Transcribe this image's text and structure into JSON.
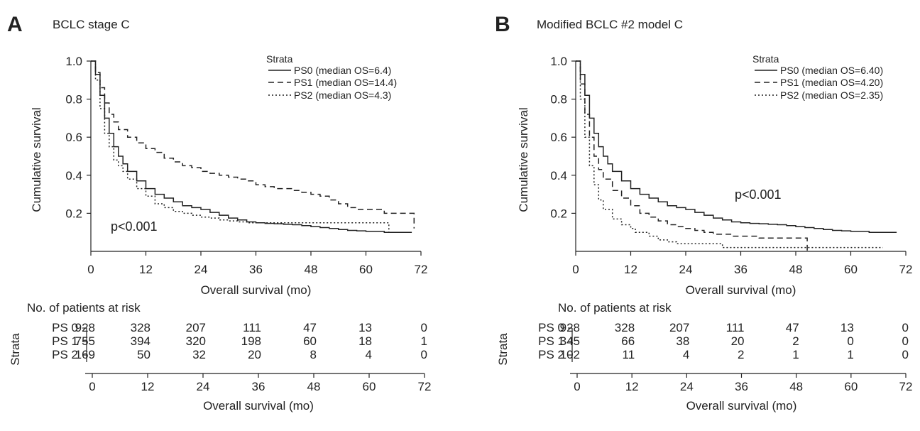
{
  "chart_data": [
    {
      "panel_letter": "A",
      "title": "BCLC stage C",
      "type": "line",
      "subtype": "kaplan-meier step curves",
      "xlabel": "Overall survival (mo)",
      "ylabel": "Cumulative survival",
      "xlim": [
        0,
        72
      ],
      "ylim": [
        0,
        1.0
      ],
      "xticks": [
        0,
        12,
        24,
        36,
        48,
        60,
        72
      ],
      "yticks": [
        0.2,
        0.4,
        0.6,
        0.8,
        1.0
      ],
      "ytick_labels": [
        "0.2",
        "0.4",
        "0.6",
        "0.8",
        "1.0"
      ],
      "grid": false,
      "legend_title": "Strata",
      "legend_position": "top-right",
      "annotation": "p<0.001",
      "series": [
        {
          "name": "PS0 (median OS=6.4)",
          "line_style": "solid",
          "x": [
            0,
            1,
            2,
            3,
            4,
            5,
            6,
            7,
            8,
            10,
            12,
            14,
            16,
            18,
            20,
            22,
            24,
            26,
            28,
            30,
            32,
            34,
            36,
            38,
            40,
            42,
            44,
            46,
            48,
            50,
            52,
            54,
            56,
            58,
            60,
            62,
            64,
            66,
            68,
            70
          ],
          "y": [
            1.0,
            0.93,
            0.82,
            0.7,
            0.62,
            0.55,
            0.5,
            0.46,
            0.42,
            0.37,
            0.33,
            0.3,
            0.28,
            0.26,
            0.24,
            0.23,
            0.22,
            0.205,
            0.19,
            0.175,
            0.165,
            0.155,
            0.15,
            0.147,
            0.145,
            0.142,
            0.14,
            0.135,
            0.13,
            0.125,
            0.12,
            0.115,
            0.11,
            0.108,
            0.105,
            0.105,
            0.1,
            0.1,
            0.1,
            0.1
          ]
        },
        {
          "name": "PS1 (median OS=14.4)",
          "line_style": "dashed",
          "x": [
            0,
            1,
            2,
            3,
            4,
            5,
            6,
            8,
            10,
            12,
            14,
            16,
            18,
            20,
            22,
            24,
            26,
            28,
            30,
            32,
            34,
            36,
            38,
            40,
            42,
            44,
            46,
            48,
            50,
            52,
            54,
            56,
            58,
            60,
            62,
            64,
            66,
            68,
            70,
            70.5
          ],
          "y": [
            1.0,
            0.94,
            0.86,
            0.78,
            0.72,
            0.68,
            0.64,
            0.6,
            0.57,
            0.54,
            0.52,
            0.49,
            0.47,
            0.45,
            0.44,
            0.42,
            0.41,
            0.4,
            0.39,
            0.38,
            0.37,
            0.35,
            0.34,
            0.33,
            0.33,
            0.32,
            0.31,
            0.3,
            0.29,
            0.27,
            0.25,
            0.23,
            0.22,
            0.22,
            0.22,
            0.2,
            0.2,
            0.2,
            0.2,
            0.12
          ]
        },
        {
          "name": "PS2 (median OS=4.3)",
          "line_style": "dotted",
          "x": [
            0,
            1,
            2,
            3,
            4,
            5,
            6,
            7,
            8,
            10,
            12,
            14,
            16,
            18,
            20,
            22,
            24,
            26,
            28,
            30,
            32,
            34,
            36,
            38,
            40,
            42,
            44,
            46,
            48,
            50,
            52,
            54,
            56,
            58,
            60,
            62,
            64,
            65
          ],
          "y": [
            1.0,
            0.9,
            0.75,
            0.62,
            0.55,
            0.48,
            0.45,
            0.42,
            0.38,
            0.33,
            0.29,
            0.25,
            0.23,
            0.21,
            0.2,
            0.19,
            0.18,
            0.175,
            0.165,
            0.16,
            0.155,
            0.15,
            0.15,
            0.15,
            0.15,
            0.15,
            0.15,
            0.15,
            0.15,
            0.15,
            0.15,
            0.15,
            0.15,
            0.15,
            0.15,
            0.15,
            0.15,
            0.1
          ]
        }
      ],
      "risk_table": {
        "title": "No. of patients at risk",
        "row_axis_label": "Strata",
        "times": [
          0,
          12,
          24,
          36,
          48,
          60,
          72
        ],
        "rows": [
          {
            "label": "PS 0",
            "counts": [
              "928",
              "328",
              "207",
              "111",
              "47",
              "13",
              "0"
            ]
          },
          {
            "label": "PS 1",
            "counts": [
              "755",
              "394",
              "320",
              "198",
              "60",
              "18",
              "1"
            ]
          },
          {
            "label": "PS 2",
            "counts": [
              "169",
              "50",
              "32",
              "20",
              "8",
              "4",
              "0"
            ]
          }
        ],
        "xlabel": "Overall survival (mo)",
        "xticks": [
          0,
          12,
          24,
          36,
          48,
          60,
          72
        ]
      }
    },
    {
      "panel_letter": "B",
      "title": "Modified BCLC #2 model C",
      "type": "line",
      "subtype": "kaplan-meier step curves",
      "xlabel": "Overall survival (mo)",
      "ylabel": "Cumulative survival",
      "xlim": [
        0,
        72
      ],
      "ylim": [
        0,
        1.0
      ],
      "xticks": [
        0,
        12,
        24,
        36,
        48,
        60,
        72
      ],
      "yticks": [
        0.2,
        0.4,
        0.6,
        0.8,
        1.0
      ],
      "ytick_labels": [
        "0.2",
        "0.4",
        "0.6",
        "0.8",
        "1.0"
      ],
      "grid": false,
      "legend_title": "Strata",
      "legend_position": "top-right",
      "annotation": "p<0.001",
      "series": [
        {
          "name": "PS0 (median OS=6.40)",
          "line_style": "solid",
          "x": [
            0,
            1,
            2,
            3,
            4,
            5,
            6,
            7,
            8,
            10,
            12,
            14,
            16,
            18,
            20,
            22,
            24,
            26,
            28,
            30,
            32,
            34,
            36,
            38,
            40,
            42,
            44,
            46,
            48,
            50,
            52,
            54,
            56,
            58,
            60,
            62,
            64,
            66,
            68,
            70
          ],
          "y": [
            1.0,
            0.93,
            0.82,
            0.7,
            0.62,
            0.55,
            0.5,
            0.46,
            0.42,
            0.37,
            0.33,
            0.3,
            0.28,
            0.26,
            0.24,
            0.23,
            0.22,
            0.205,
            0.19,
            0.175,
            0.165,
            0.155,
            0.15,
            0.147,
            0.145,
            0.142,
            0.14,
            0.135,
            0.13,
            0.125,
            0.12,
            0.115,
            0.11,
            0.108,
            0.105,
            0.105,
            0.1,
            0.1,
            0.1,
            0.1
          ]
        },
        {
          "name": "PS1 (median OS=4.20)",
          "line_style": "dashed",
          "x": [
            0,
            1,
            2,
            3,
            4,
            5,
            6,
            8,
            10,
            12,
            14,
            16,
            18,
            20,
            22,
            24,
            26,
            28,
            30,
            32,
            34,
            36,
            38,
            40,
            44,
            48,
            50,
            50.5
          ],
          "y": [
            1.0,
            0.88,
            0.72,
            0.6,
            0.5,
            0.43,
            0.38,
            0.32,
            0.28,
            0.24,
            0.2,
            0.18,
            0.16,
            0.14,
            0.13,
            0.12,
            0.11,
            0.1,
            0.09,
            0.09,
            0.08,
            0.08,
            0.08,
            0.07,
            0.07,
            0.07,
            0.07,
            0.0
          ]
        },
        {
          "name": "PS2 (median OS=2.35)",
          "line_style": "dotted",
          "x": [
            0,
            1,
            2,
            3,
            4,
            5,
            6,
            8,
            10,
            12,
            13,
            14,
            16,
            18,
            20,
            22,
            24,
            26,
            28,
            30,
            32,
            34,
            36,
            40,
            44,
            48,
            52,
            56,
            60,
            64,
            67
          ],
          "y": [
            1.0,
            0.8,
            0.6,
            0.45,
            0.35,
            0.27,
            0.22,
            0.17,
            0.14,
            0.12,
            0.1,
            0.1,
            0.08,
            0.06,
            0.05,
            0.04,
            0.04,
            0.04,
            0.04,
            0.04,
            0.02,
            0.02,
            0.02,
            0.02,
            0.02,
            0.02,
            0.02,
            0.02,
            0.02,
            0.02,
            0.02
          ]
        }
      ],
      "risk_table": {
        "title": "No. of patients at risk",
        "row_axis_label": "Strata",
        "times": [
          0,
          12,
          24,
          36,
          48,
          60,
          72
        ],
        "rows": [
          {
            "label": "PS 0",
            "counts": [
              "928",
              "328",
              "207",
              "111",
              "47",
              "13",
              "0"
            ]
          },
          {
            "label": "PS 1",
            "counts": [
              "345",
              "66",
              "38",
              "20",
              "2",
              "0",
              "0"
            ]
          },
          {
            "label": "PS 2",
            "counts": [
              "102",
              "11",
              "4",
              "2",
              "1",
              "1",
              "0"
            ]
          }
        ],
        "xlabel": "Overall survival (mo)",
        "xticks": [
          0,
          12,
          24,
          36,
          48,
          60,
          72
        ]
      }
    }
  ]
}
